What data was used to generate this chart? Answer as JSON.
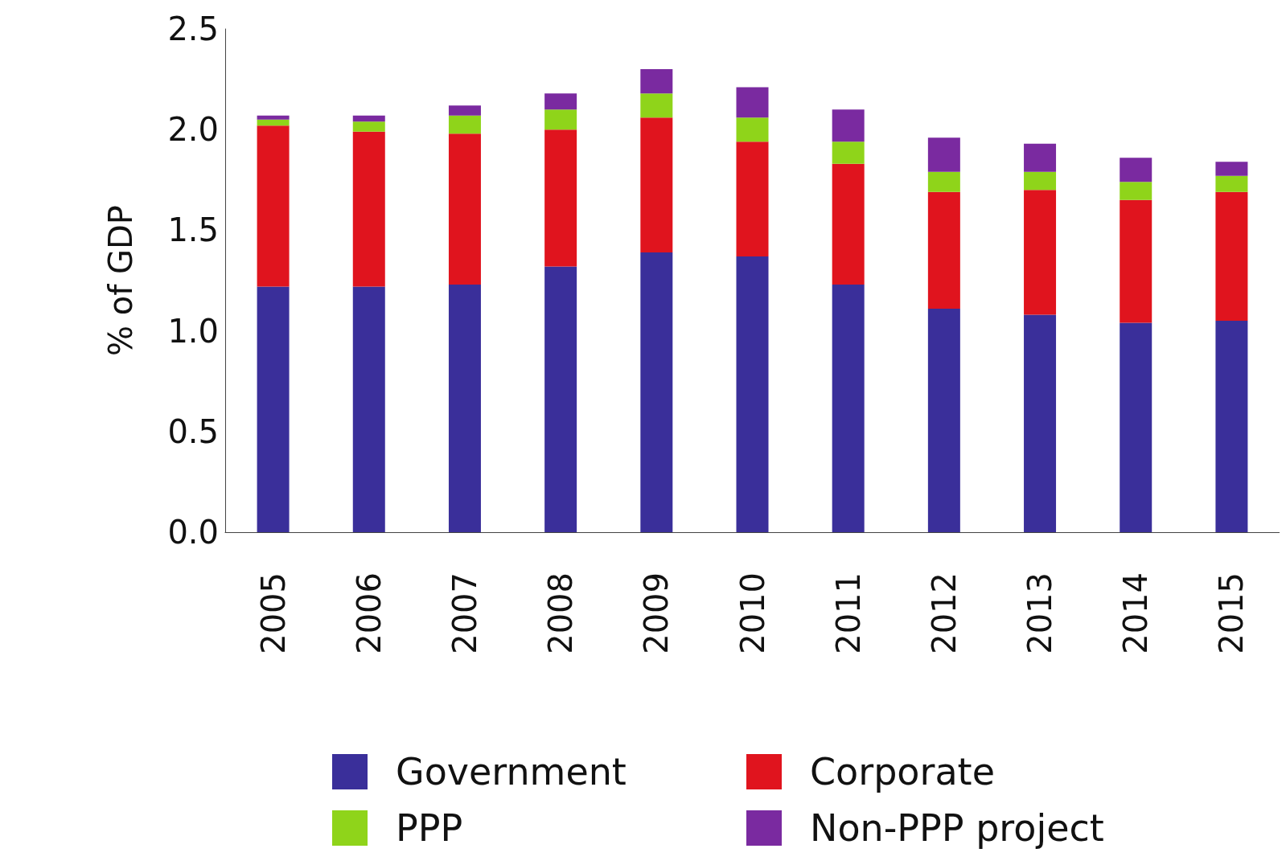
{
  "chart_data": {
    "type": "bar",
    "stacked": true,
    "ylabel": "% of GDP",
    "categories": [
      "2005",
      "2006",
      "2007",
      "2008",
      "2009",
      "2010",
      "2011",
      "2012",
      "2013",
      "2014",
      "2015"
    ],
    "series": [
      {
        "name": "Government",
        "color": "#3a2f9a",
        "values": [
          1.22,
          1.22,
          1.23,
          1.32,
          1.39,
          1.37,
          1.23,
          1.11,
          1.08,
          1.04,
          1.05
        ]
      },
      {
        "name": "Corporate",
        "color": "#e0141e",
        "values": [
          0.8,
          0.77,
          0.75,
          0.68,
          0.67,
          0.57,
          0.6,
          0.58,
          0.62,
          0.61,
          0.64
        ]
      },
      {
        "name": "PPP",
        "color": "#8fd41a",
        "values": [
          0.03,
          0.05,
          0.09,
          0.1,
          0.12,
          0.12,
          0.11,
          0.1,
          0.09,
          0.09,
          0.08
        ]
      },
      {
        "name": "Non-PPP project",
        "color": "#7a2aa0",
        "values": [
          0.02,
          0.03,
          0.05,
          0.08,
          0.12,
          0.15,
          0.16,
          0.17,
          0.14,
          0.12,
          0.07
        ]
      }
    ],
    "ylim": [
      0,
      2.5
    ],
    "yticks": [
      {
        "value": 0,
        "label": "0.0"
      },
      0.5,
      {
        "value": 1,
        "label": "1.0"
      },
      1.5,
      {
        "value": 2,
        "label": "2.0"
      },
      2.5
    ],
    "grid": false,
    "legend": "bottom"
  }
}
